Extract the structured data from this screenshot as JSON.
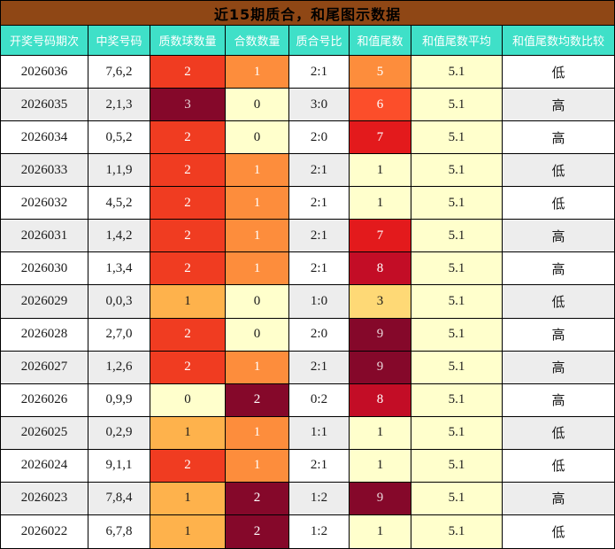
{
  "theme": {
    "title_bg": "#8F4715",
    "title_fg": "#000000",
    "header_bg": "#3FE0C8",
    "header_fg": "#FFFFFF",
    "row_bg": "#FFFFFF",
    "row_alt_bg": "#EDEDED",
    "avg_bg": "#FFFFCC",
    "text": "#1A1A1A",
    "border": "#000000"
  },
  "chart_data": {
    "type": "table",
    "title": "近15期质合，和尾图示数据",
    "columns": [
      "开奖号码期次",
      "中奖号码",
      "质数球数量",
      "合数数量",
      "质合号比",
      "和值尾数",
      "和值尾数平均",
      "和值尾数均数比较"
    ],
    "rows": [
      [
        "2026036",
        "7,6,2",
        "2",
        "1",
        "2:1",
        "5",
        "5.1",
        "低"
      ],
      [
        "2026035",
        "2,1,3",
        "3",
        "0",
        "3:0",
        "6",
        "5.1",
        "高"
      ],
      [
        "2026034",
        "0,5,2",
        "2",
        "0",
        "2:0",
        "7",
        "5.1",
        "高"
      ],
      [
        "2026033",
        "1,1,9",
        "2",
        "1",
        "2:1",
        "1",
        "5.1",
        "低"
      ],
      [
        "2026032",
        "4,5,2",
        "2",
        "1",
        "2:1",
        "1",
        "5.1",
        "低"
      ],
      [
        "2026031",
        "1,4,2",
        "2",
        "1",
        "2:1",
        "7",
        "5.1",
        "高"
      ],
      [
        "2026030",
        "1,3,4",
        "2",
        "1",
        "2:1",
        "8",
        "5.1",
        "高"
      ],
      [
        "2026029",
        "0,0,3",
        "1",
        "0",
        "1:0",
        "3",
        "5.1",
        "低"
      ],
      [
        "2026028",
        "2,7,0",
        "2",
        "0",
        "2:0",
        "9",
        "5.1",
        "高"
      ],
      [
        "2026027",
        "1,2,6",
        "2",
        "1",
        "2:1",
        "9",
        "5.1",
        "高"
      ],
      [
        "2026026",
        "0,9,9",
        "0",
        "2",
        "0:2",
        "8",
        "5.1",
        "高"
      ],
      [
        "2026025",
        "0,2,9",
        "1",
        "1",
        "1:1",
        "1",
        "5.1",
        "低"
      ],
      [
        "2026024",
        "9,1,1",
        "2",
        "1",
        "2:1",
        "1",
        "5.1",
        "低"
      ],
      [
        "2026023",
        "7,8,4",
        "1",
        "2",
        "1:2",
        "9",
        "5.1",
        "高"
      ],
      [
        "2026022",
        "6,7,8",
        "1",
        "2",
        "1:2",
        "1",
        "5.1",
        "低"
      ]
    ]
  },
  "heat": [
    {
      "prime": [
        "#F03C21",
        "#FFFFFF"
      ],
      "composite": [
        "#FD8D3C",
        "#FFFFFF"
      ],
      "tail": [
        "#FD8D3C",
        "#FFFFFF"
      ]
    },
    {
      "prime": [
        "#85082A",
        "#E8D4D8"
      ],
      "composite": [
        "#FFFFCC",
        "#1A1A1A"
      ],
      "tail": [
        "#FC4E2A",
        "#FFFFFF"
      ]
    },
    {
      "prime": [
        "#F03C21",
        "#FFFFFF"
      ],
      "composite": [
        "#FFFFCC",
        "#1A1A1A"
      ],
      "tail": [
        "#E31A1C",
        "#FFFFFF"
      ]
    },
    {
      "prime": [
        "#F03C21",
        "#FFFFFF"
      ],
      "composite": [
        "#FD8D3C",
        "#FFFFFF"
      ],
      "tail": [
        "#FFFFCC",
        "#1A1A1A"
      ]
    },
    {
      "prime": [
        "#F03C21",
        "#FFFFFF"
      ],
      "composite": [
        "#FD8D3C",
        "#FFFFFF"
      ],
      "tail": [
        "#FFFFCC",
        "#1A1A1A"
      ]
    },
    {
      "prime": [
        "#F03C21",
        "#FFFFFF"
      ],
      "composite": [
        "#FD8D3C",
        "#FFFFFF"
      ],
      "tail": [
        "#E31A1C",
        "#FFFFFF"
      ]
    },
    {
      "prime": [
        "#F03C21",
        "#FFFFFF"
      ],
      "composite": [
        "#FD8D3C",
        "#FFFFFF"
      ],
      "tail": [
        "#C30D26",
        "#FFFFFF"
      ]
    },
    {
      "prime": [
        "#FEB24C",
        "#1A1A1A"
      ],
      "composite": [
        "#FFFFCC",
        "#1A1A1A"
      ],
      "tail": [
        "#FED976",
        "#1A1A1A"
      ]
    },
    {
      "prime": [
        "#F03C21",
        "#FFFFFF"
      ],
      "composite": [
        "#FFFFCC",
        "#1A1A1A"
      ],
      "tail": [
        "#85082A",
        "#E8D4D8"
      ]
    },
    {
      "prime": [
        "#F03C21",
        "#FFFFFF"
      ],
      "composite": [
        "#FD8D3C",
        "#FFFFFF"
      ],
      "tail": [
        "#85082A",
        "#E8D4D8"
      ]
    },
    {
      "prime": [
        "#FFFFCC",
        "#1A1A1A"
      ],
      "composite": [
        "#85082A",
        "#FFFFFF"
      ],
      "tail": [
        "#C30D26",
        "#FFFFFF"
      ]
    },
    {
      "prime": [
        "#FEB24C",
        "#1A1A1A"
      ],
      "composite": [
        "#FD8D3C",
        "#FFFFFF"
      ],
      "tail": [
        "#FFFFCC",
        "#1A1A1A"
      ]
    },
    {
      "prime": [
        "#F03C21",
        "#FFFFFF"
      ],
      "composite": [
        "#FD8D3C",
        "#FFFFFF"
      ],
      "tail": [
        "#FFFFCC",
        "#1A1A1A"
      ]
    },
    {
      "prime": [
        "#FEB24C",
        "#1A1A1A"
      ],
      "composite": [
        "#85082A",
        "#FFFFFF"
      ],
      "tail": [
        "#85082A",
        "#E8D4D8"
      ]
    },
    {
      "prime": [
        "#FEB24C",
        "#1A1A1A"
      ],
      "composite": [
        "#85082A",
        "#FFFFFF"
      ],
      "tail": [
        "#FFFFCC",
        "#1A1A1A"
      ]
    }
  ]
}
